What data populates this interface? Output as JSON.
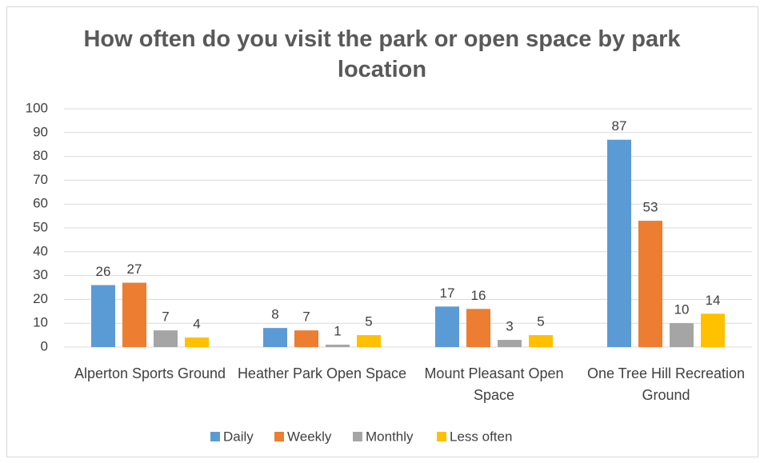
{
  "chart_data": {
    "type": "bar",
    "title": "How often do you visit the park or open space by park location",
    "categories": [
      "Alperton Sports Ground",
      "Heather Park Open Space",
      "Mount Pleasant Open Space",
      "One Tree Hill Recreation Ground"
    ],
    "series": [
      {
        "name": "Daily",
        "color": "#5b9bd5",
        "values": [
          26,
          8,
          17,
          87
        ]
      },
      {
        "name": "Weekly",
        "color": "#ed7d31",
        "values": [
          27,
          7,
          16,
          53
        ]
      },
      {
        "name": "Monthly",
        "color": "#a5a5a5",
        "values": [
          7,
          1,
          3,
          10
        ]
      },
      {
        "name": "Less often",
        "color": "#ffc000",
        "values": [
          4,
          5,
          5,
          14
        ]
      }
    ],
    "ylim": [
      0,
      100
    ],
    "yticks": [
      0,
      10,
      20,
      30,
      40,
      50,
      60,
      70,
      80,
      90,
      100
    ],
    "grid": true,
    "legend": "bottom"
  }
}
